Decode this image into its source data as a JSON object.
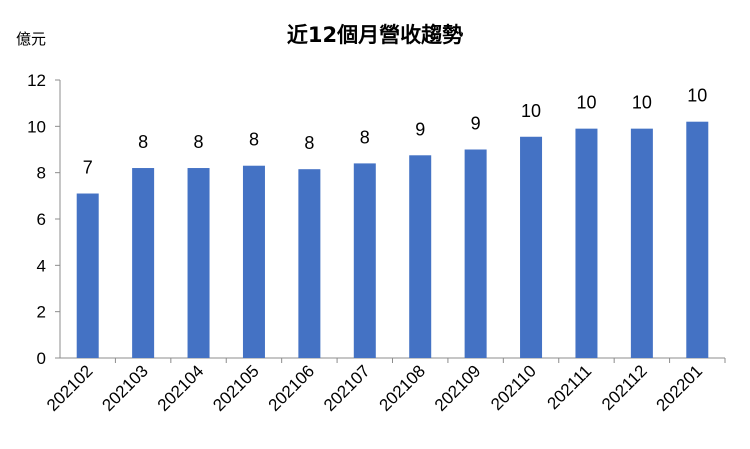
{
  "chart_data": {
    "type": "bar",
    "title": "近12個月營收趨勢",
    "ylabel": "億元",
    "xlabel": "",
    "categories": [
      "202102",
      "202103",
      "202104",
      "202105",
      "202106",
      "202107",
      "202108",
      "202109",
      "202110",
      "202111",
      "202112",
      "202201"
    ],
    "values": [
      7.1,
      8.2,
      8.2,
      8.3,
      8.15,
      8.4,
      8.75,
      9.0,
      9.55,
      9.9,
      9.9,
      10.2
    ],
    "data_labels": [
      "7",
      "8",
      "8",
      "8",
      "8",
      "8",
      "9",
      "9",
      "10",
      "10",
      "10",
      "10"
    ],
    "ylim": [
      0,
      12
    ],
    "yticks": [
      0,
      2,
      4,
      6,
      8,
      10,
      12
    ],
    "grid": false,
    "legend": "none",
    "bar_color": "#4472C4"
  }
}
